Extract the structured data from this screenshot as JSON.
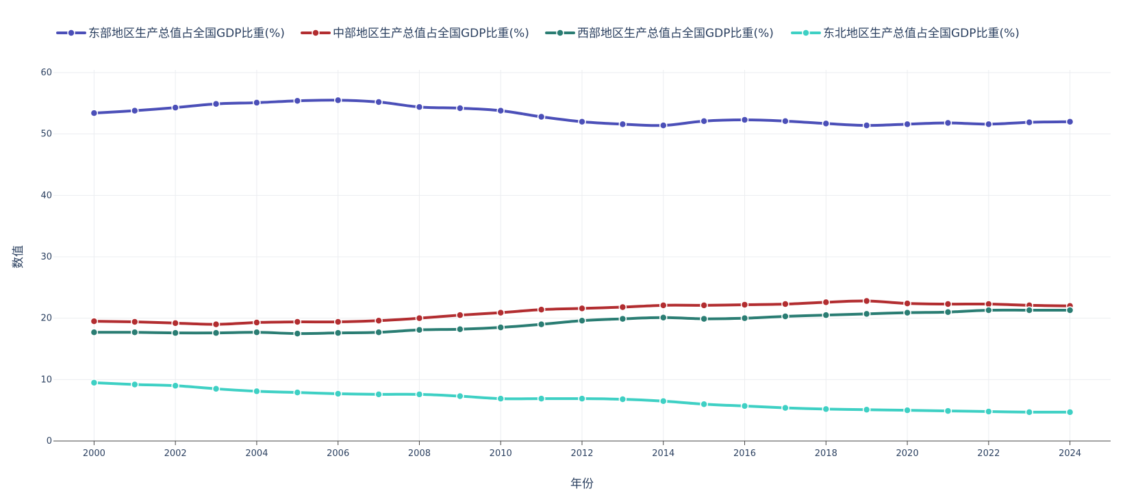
{
  "chart_data": {
    "type": "line",
    "xlabel": "年份",
    "ylabel": "数值",
    "x": [
      2000,
      2001,
      2002,
      2003,
      2004,
      2005,
      2006,
      2007,
      2008,
      2009,
      2010,
      2011,
      2012,
      2013,
      2014,
      2015,
      2016,
      2017,
      2018,
      2019,
      2020,
      2021,
      2022,
      2023,
      2024
    ],
    "xlim": [
      1999,
      2025
    ],
    "ylim": [
      0,
      60
    ],
    "x_ticks": [
      2000,
      2002,
      2004,
      2006,
      2008,
      2010,
      2012,
      2014,
      2016,
      2018,
      2020,
      2022,
      2024
    ],
    "y_ticks": [
      0,
      10,
      20,
      30,
      40,
      50,
      60
    ],
    "grid": true,
    "legend_position": "top",
    "series": [
      {
        "name": "东部地区生产总值占全国GDP比重(%)",
        "color": "#4b4fb8",
        "values": [
          53.4,
          53.8,
          54.3,
          54.9,
          55.1,
          55.4,
          55.5,
          55.2,
          54.4,
          54.2,
          53.8,
          52.8,
          52.0,
          51.6,
          51.4,
          52.1,
          52.3,
          52.1,
          51.7,
          51.4,
          51.6,
          51.8,
          51.6,
          51.9,
          52.0
        ]
      },
      {
        "name": "中部地区生产总值占全国GDP比重(%)",
        "color": "#b22d30",
        "values": [
          19.5,
          19.4,
          19.2,
          19.0,
          19.3,
          19.4,
          19.4,
          19.6,
          20.0,
          20.5,
          20.9,
          21.4,
          21.6,
          21.8,
          22.1,
          22.1,
          22.2,
          22.3,
          22.6,
          22.8,
          22.4,
          22.3,
          22.3,
          22.1,
          22.0
        ]
      },
      {
        "name": "西部地区生产总值占全国GDP比重(%)",
        "color": "#2a7d73",
        "values": [
          17.7,
          17.7,
          17.6,
          17.6,
          17.7,
          17.5,
          17.6,
          17.7,
          18.1,
          18.2,
          18.5,
          19.0,
          19.6,
          19.9,
          20.1,
          19.9,
          20.0,
          20.3,
          20.5,
          20.7,
          20.9,
          21.0,
          21.3,
          21.3,
          21.3
        ]
      },
      {
        "name": "东北地区生产总值占全国GDP比重(%)",
        "color": "#3ed0c4",
        "values": [
          9.5,
          9.2,
          9.0,
          8.5,
          8.1,
          7.9,
          7.7,
          7.6,
          7.6,
          7.3,
          6.9,
          6.9,
          6.9,
          6.8,
          6.5,
          6.0,
          5.7,
          5.4,
          5.2,
          5.1,
          5.0,
          4.9,
          4.8,
          4.7,
          4.7
        ]
      }
    ]
  }
}
